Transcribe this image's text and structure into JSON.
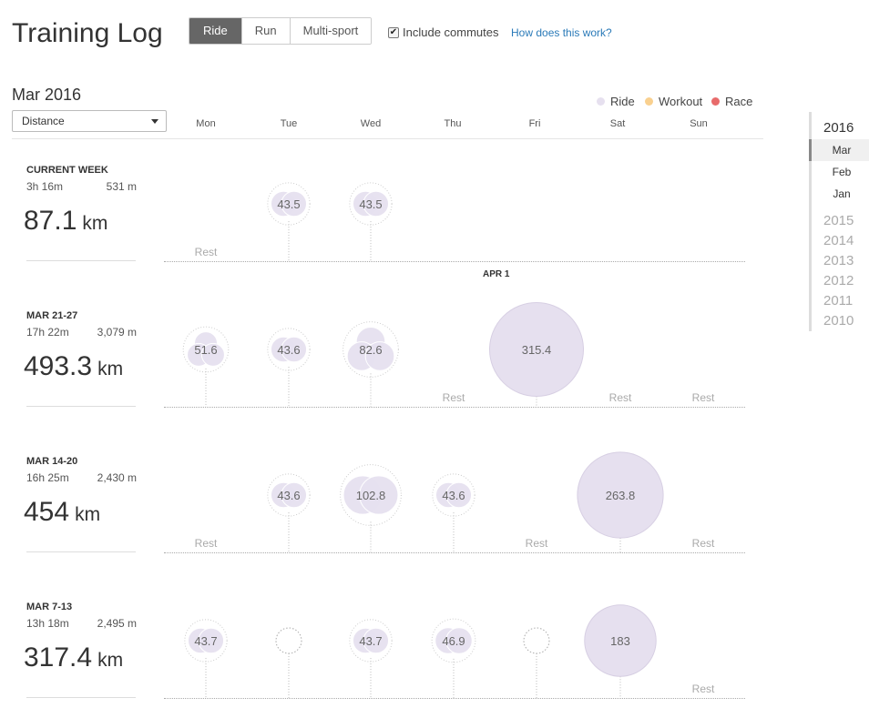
{
  "header": {
    "title": "Training Log",
    "tabs": [
      {
        "label": "Ride",
        "active": true
      },
      {
        "label": "Run",
        "active": false
      },
      {
        "label": "Multi-sport",
        "active": false
      }
    ],
    "commutes": {
      "label": "Include commutes",
      "checked": true,
      "check_glyph": "✔"
    },
    "help_link": "How does this work?"
  },
  "controls": {
    "month": "Mar 2016",
    "metric_select": "Distance"
  },
  "legend": [
    {
      "label": "Ride",
      "color": "#e6e0ef"
    },
    {
      "label": "Workout",
      "color": "#f9d08f"
    },
    {
      "label": "Race",
      "color": "#e86b6b"
    }
  ],
  "days": [
    "Mon",
    "Tue",
    "Wed",
    "Thu",
    "Fri",
    "Sat",
    "Sun"
  ],
  "colors": {
    "ride_fill": "#e6e0ef",
    "ride_stroke": "#d7cfe3",
    "accent_link": "#2a7ab8",
    "active_tab": "#666666"
  },
  "weeks": [
    {
      "label": "CURRENT WEEK",
      "time": "3h 16m",
      "elevation": "531 m",
      "total": "87.1",
      "unit": "km",
      "rest_label": "Rest",
      "days": [
        {
          "type": "rest"
        },
        {
          "type": "ride",
          "value": "43.5",
          "km": 43.5,
          "rides": 2
        },
        {
          "type": "ride",
          "value": "43.5",
          "km": 43.5,
          "rides": 2
        },
        {
          "type": "none"
        },
        {
          "type": "none"
        },
        {
          "type": "none"
        },
        {
          "type": "none"
        }
      ],
      "marker": "APR 1"
    },
    {
      "label": "MAR 21-27",
      "time": "17h 22m",
      "elevation": "3,079 m",
      "total": "493.3",
      "unit": "km",
      "rest_label": "Rest",
      "days": [
        {
          "type": "ride",
          "value": "51.6",
          "km": 51.6,
          "rides": 3
        },
        {
          "type": "ride",
          "value": "43.6",
          "km": 43.6,
          "rides": 2
        },
        {
          "type": "ride",
          "value": "82.6",
          "km": 82.6,
          "rides": 3
        },
        {
          "type": "rest"
        },
        {
          "type": "ride",
          "value": "315.4",
          "km": 315.4,
          "rides": 1
        },
        {
          "type": "rest"
        },
        {
          "type": "rest"
        }
      ]
    },
    {
      "label": "MAR 14-20",
      "time": "16h 25m",
      "elevation": "2,430 m",
      "total": "454",
      "unit": "km",
      "rest_label": "Rest",
      "days": [
        {
          "type": "rest"
        },
        {
          "type": "ride",
          "value": "43.6",
          "km": 43.6,
          "rides": 2
        },
        {
          "type": "ride",
          "value": "102.8",
          "km": 102.8,
          "rides": 2
        },
        {
          "type": "ride",
          "value": "43.6",
          "km": 43.6,
          "rides": 2
        },
        {
          "type": "rest"
        },
        {
          "type": "ride",
          "value": "263.8",
          "km": 263.8,
          "rides": 1
        },
        {
          "type": "rest"
        }
      ]
    },
    {
      "label": "MAR 7-13",
      "time": "13h 18m",
      "elevation": "2,495 m",
      "total": "317.4",
      "unit": "km",
      "rest_label": "Rest",
      "days": [
        {
          "type": "ride",
          "value": "43.7",
          "km": 43.7,
          "rides": 2
        },
        {
          "type": "empty"
        },
        {
          "type": "ride",
          "value": "43.7",
          "km": 43.7,
          "rides": 2
        },
        {
          "type": "ride",
          "value": "46.9",
          "km": 46.9,
          "rides": 2
        },
        {
          "type": "empty"
        },
        {
          "type": "ride",
          "value": "183",
          "km": 183,
          "rides": 1
        },
        {
          "type": "rest"
        }
      ]
    }
  ],
  "sidebar": {
    "current_year": "2016",
    "months": [
      {
        "label": "Mar",
        "selected": true
      },
      {
        "label": "Feb",
        "selected": false
      },
      {
        "label": "Jan",
        "selected": false
      }
    ],
    "years": [
      "2015",
      "2014",
      "2013",
      "2012",
      "2011",
      "2010"
    ]
  }
}
